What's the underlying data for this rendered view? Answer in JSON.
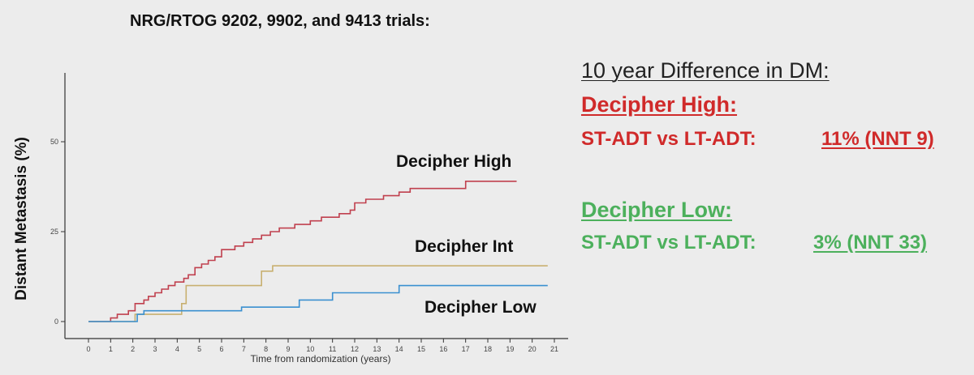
{
  "slide_title": "NRG/RTOG 9202, 9902, and 9413 trials:",
  "chart_data": {
    "type": "line",
    "xlabel": "Time from randomization (years)",
    "ylabel": "Distant Metastasis (%)",
    "xlim": [
      0,
      21
    ],
    "ylim": [
      0,
      50
    ],
    "x_ticks": [
      "0",
      "1",
      "2",
      "3",
      "4",
      "5",
      "6",
      "7",
      "8",
      "9",
      "10",
      "11",
      "12",
      "13",
      "14",
      "15",
      "16",
      "17",
      "18",
      "19",
      "20",
      "21"
    ],
    "y_ticks": [
      "0",
      "25",
      "50"
    ],
    "grid": false,
    "series": [
      {
        "name": "Decipher High",
        "color": "#c0404e",
        "points": [
          [
            0,
            0
          ],
          [
            1,
            0
          ],
          [
            1,
            1
          ],
          [
            1.3,
            1
          ],
          [
            1.3,
            2
          ],
          [
            1.8,
            2
          ],
          [
            1.8,
            3
          ],
          [
            2.1,
            3
          ],
          [
            2.1,
            5
          ],
          [
            2.5,
            5
          ],
          [
            2.5,
            6
          ],
          [
            2.7,
            6
          ],
          [
            2.7,
            7
          ],
          [
            3,
            7
          ],
          [
            3,
            8
          ],
          [
            3.3,
            8
          ],
          [
            3.3,
            9
          ],
          [
            3.6,
            9
          ],
          [
            3.6,
            10
          ],
          [
            3.9,
            10
          ],
          [
            3.9,
            11
          ],
          [
            4.3,
            11
          ],
          [
            4.3,
            12
          ],
          [
            4.5,
            12
          ],
          [
            4.5,
            13
          ],
          [
            4.8,
            13
          ],
          [
            4.8,
            15
          ],
          [
            5.1,
            15
          ],
          [
            5.1,
            16
          ],
          [
            5.4,
            16
          ],
          [
            5.4,
            17
          ],
          [
            5.7,
            17
          ],
          [
            5.7,
            18
          ],
          [
            6,
            18
          ],
          [
            6,
            20
          ],
          [
            6.6,
            20
          ],
          [
            6.6,
            21
          ],
          [
            7,
            21
          ],
          [
            7,
            22
          ],
          [
            7.4,
            22
          ],
          [
            7.4,
            23
          ],
          [
            7.8,
            23
          ],
          [
            7.8,
            24
          ],
          [
            8.2,
            24
          ],
          [
            8.2,
            25
          ],
          [
            8.6,
            25
          ],
          [
            8.6,
            26
          ],
          [
            9.3,
            26
          ],
          [
            9.3,
            27
          ],
          [
            10,
            27
          ],
          [
            10,
            28
          ],
          [
            10.5,
            28
          ],
          [
            10.5,
            29
          ],
          [
            11.3,
            29
          ],
          [
            11.3,
            30
          ],
          [
            11.8,
            30
          ],
          [
            11.8,
            31
          ],
          [
            12,
            31
          ],
          [
            12,
            33
          ],
          [
            12.5,
            33
          ],
          [
            12.5,
            34
          ],
          [
            13.3,
            34
          ],
          [
            13.3,
            35
          ],
          [
            14,
            35
          ],
          [
            14,
            36
          ],
          [
            14.5,
            36
          ],
          [
            14.5,
            37
          ],
          [
            17,
            37
          ],
          [
            17,
            39
          ],
          [
            19.3,
            39
          ]
        ]
      },
      {
        "name": "Decipher Int",
        "color": "#c8b070",
        "points": [
          [
            0,
            0
          ],
          [
            2.1,
            0
          ],
          [
            2.1,
            2
          ],
          [
            4.2,
            2
          ],
          [
            4.2,
            5
          ],
          [
            4.4,
            5
          ],
          [
            4.4,
            10
          ],
          [
            7.8,
            10
          ],
          [
            7.8,
            14
          ],
          [
            8.3,
            14
          ],
          [
            8.3,
            15.5
          ],
          [
            20.7,
            15.5
          ]
        ]
      },
      {
        "name": "Decipher Low",
        "color": "#3a90d0",
        "points": [
          [
            0,
            0
          ],
          [
            2.2,
            0
          ],
          [
            2.2,
            2
          ],
          [
            2.5,
            2
          ],
          [
            2.5,
            3
          ],
          [
            6.9,
            3
          ],
          [
            6.9,
            4
          ],
          [
            9.5,
            4
          ],
          [
            9.5,
            6
          ],
          [
            11,
            6
          ],
          [
            11,
            8
          ],
          [
            14,
            8
          ],
          [
            14,
            10
          ],
          [
            20.7,
            10
          ]
        ]
      }
    ]
  },
  "panel": {
    "heading": "10 year Difference in DM:",
    "high": {
      "label": "Decipher High:",
      "comparison": "ST-ADT  vs  LT-ADT:",
      "value": "11% (NNT 9)"
    },
    "low": {
      "label": "Decipher Low:",
      "comparison": "ST-ADT vs LT-ADT:",
      "value": "3% (NNT 33)"
    }
  }
}
